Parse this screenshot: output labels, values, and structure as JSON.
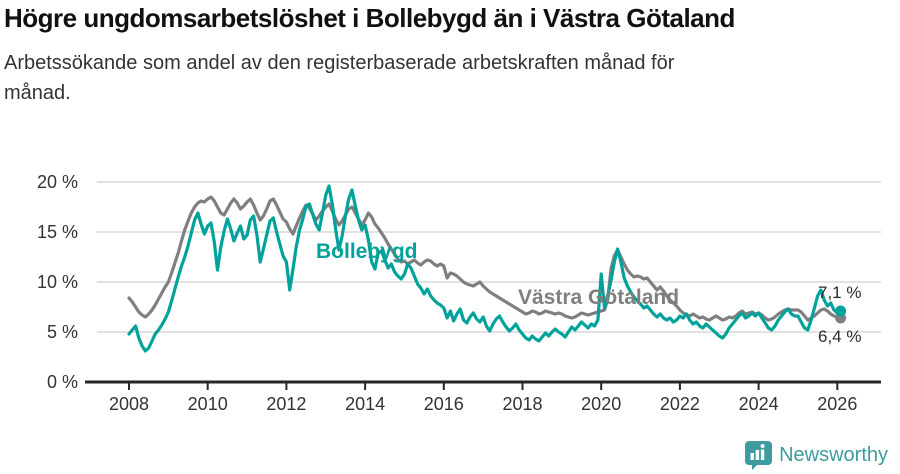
{
  "header": {
    "title": "Högre ungdomsarbetslöshet i Bollebygd än i Västra Götaland",
    "subtitle": "Arbetssökande som andel av den registerbaserade arbetskraften månad för månad."
  },
  "footer": {
    "brand": "Newsworthy",
    "logo_icon": "bar-chart-pin-icon",
    "brand_color": "#3E9C9E"
  },
  "chart_data": {
    "type": "line",
    "title": "Högre ungdomsarbetslöshet i Bollebygd än i Västra Götaland",
    "subtitle": "Arbetssökande som andel av den registerbaserade arbetskraften månad för månad.",
    "unit": "%",
    "frequency": "monthly",
    "x_start": "2008-01",
    "x_end": "2026-02",
    "ylim": [
      0,
      21
    ],
    "grid": true,
    "legend_position": "inline-labels",
    "colors": {
      "grid": "#D8D8D8",
      "axis": "#262626",
      "tick_text": "#333333",
      "value_text": "#2B2B2B"
    },
    "yticks": [
      {
        "value": 0,
        "label": "0 %"
      },
      {
        "value": 5,
        "label": "5 %"
      },
      {
        "value": 10,
        "label": "10 %"
      },
      {
        "value": 15,
        "label": "15 %"
      },
      {
        "value": 20,
        "label": "20 %"
      }
    ],
    "xticks": [
      "2008",
      "2010",
      "2012",
      "2014",
      "2016",
      "2018",
      "2020",
      "2022",
      "2024",
      "2026"
    ],
    "series": [
      {
        "name": "Västra Götaland",
        "color": "#7F7F7F",
        "end_label": "6,4 %",
        "end_label_position": "below",
        "end_value": 6.4,
        "values": [
          8.4,
          8.0,
          7.5,
          7.0,
          6.7,
          6.5,
          6.8,
          7.2,
          7.7,
          8.3,
          8.9,
          9.5,
          10.0,
          10.9,
          11.9,
          12.9,
          14.1,
          15.2,
          16.1,
          16.9,
          17.5,
          17.9,
          18.1,
          18.0,
          18.3,
          18.5,
          18.1,
          17.5,
          16.9,
          16.7,
          17.3,
          17.9,
          18.3,
          17.9,
          17.3,
          17.6,
          18.0,
          18.3,
          17.7,
          16.9,
          16.2,
          16.6,
          17.3,
          18.1,
          18.3,
          17.7,
          17.0,
          16.3,
          16.0,
          15.3,
          14.8,
          15.6,
          16.4,
          17.1,
          17.7,
          17.4,
          16.8,
          16.2,
          16.6,
          17.1,
          17.5,
          17.8,
          17.1,
          16.3,
          15.7,
          16.1,
          16.7,
          17.3,
          17.5,
          16.9,
          16.3,
          15.7,
          16.2,
          16.9,
          16.5,
          15.8,
          15.4,
          14.9,
          14.4,
          13.8,
          13.3,
          12.8,
          12.3,
          12.0,
          12.1,
          11.8,
          12.0,
          12.2,
          11.9,
          11.7,
          12.0,
          12.2,
          12.1,
          11.8,
          11.6,
          11.8,
          11.6,
          10.4,
          10.9,
          10.8,
          10.6,
          10.3,
          10.0,
          9.8,
          9.7,
          9.6,
          9.8,
          10.0,
          9.6,
          9.3,
          9.0,
          8.8,
          8.6,
          8.4,
          8.2,
          8.0,
          7.8,
          7.6,
          7.4,
          7.2,
          7.0,
          6.8,
          6.9,
          7.1,
          7.0,
          6.8,
          6.9,
          7.1,
          7.0,
          6.9,
          6.8,
          6.9,
          6.8,
          6.6,
          6.5,
          6.4,
          6.5,
          6.7,
          6.9,
          6.8,
          6.7,
          6.8,
          6.9,
          7.0,
          7.1,
          7.2,
          8.3,
          11.3,
          12.6,
          13.2,
          12.5,
          11.8,
          11.2,
          10.8,
          10.5,
          10.6,
          10.5,
          10.3,
          10.4,
          10.0,
          9.6,
          9.2,
          9.5,
          9.1,
          8.6,
          8.2,
          7.9,
          7.6,
          7.2,
          6.9,
          6.7,
          6.6,
          6.8,
          6.6,
          6.4,
          6.5,
          6.3,
          6.2,
          6.4,
          6.6,
          6.4,
          6.2,
          6.3,
          6.5,
          6.4,
          6.6,
          6.9,
          7.1,
          6.8,
          6.9,
          7.0,
          6.8,
          6.9,
          6.7,
          6.4,
          6.2,
          6.3,
          6.5,
          6.8,
          7.0,
          7.2,
          7.3,
          7.2,
          7.2,
          7.2,
          7.0,
          6.6,
          6.2,
          6.4,
          6.6,
          6.9,
          7.2,
          7.3,
          7.1,
          6.8,
          6.6,
          6.5,
          6.4
        ]
      },
      {
        "name": "Bollebygd",
        "color": "#00A29B",
        "end_label": "7,1 %",
        "end_label_position": "above",
        "end_value": 7.1,
        "values": [
          4.8,
          5.2,
          5.6,
          4.4,
          3.6,
          3.1,
          3.4,
          4.1,
          4.8,
          5.2,
          5.7,
          6.3,
          7.0,
          8.1,
          9.3,
          10.5,
          11.6,
          12.5,
          13.6,
          14.9,
          16.2,
          16.9,
          15.8,
          14.8,
          15.6,
          15.9,
          14.0,
          11.2,
          13.5,
          15.1,
          16.3,
          15.3,
          14.1,
          14.9,
          15.6,
          14.3,
          14.7,
          16.2,
          16.6,
          14.7,
          12.0,
          13.3,
          14.7,
          16.1,
          16.4,
          15.0,
          13.8,
          12.6,
          12.0,
          9.2,
          11.3,
          13.5,
          15.2,
          16.3,
          17.6,
          17.8,
          16.8,
          15.8,
          15.2,
          16.9,
          18.7,
          19.6,
          17.8,
          15.3,
          13.2,
          14.6,
          16.6,
          18.3,
          19.2,
          17.6,
          16.2,
          15.2,
          15.7,
          14.2,
          12.0,
          11.3,
          12.9,
          13.1,
          12.2,
          11.4,
          11.8,
          11.0,
          10.6,
          10.3,
          10.8,
          11.8,
          11.4,
          10.6,
          9.8,
          9.4,
          8.8,
          9.3,
          8.6,
          8.2,
          7.9,
          7.7,
          7.4,
          6.4,
          7.1,
          6.1,
          6.8,
          7.3,
          6.2,
          5.9,
          6.5,
          6.9,
          6.3,
          6.0,
          6.5,
          5.6,
          5.1,
          5.8,
          6.3,
          6.6,
          6.0,
          5.5,
          5.1,
          5.4,
          5.8,
          5.2,
          4.8,
          4.4,
          4.2,
          4.6,
          4.3,
          4.1,
          4.5,
          4.9,
          4.6,
          5.0,
          5.3,
          5.0,
          4.8,
          4.5,
          5.0,
          5.5,
          5.2,
          5.6,
          6.0,
          5.7,
          5.4,
          5.8,
          5.6,
          6.2,
          10.8,
          7.4,
          8.6,
          10.2,
          12.0,
          13.3,
          12.0,
          10.4,
          9.6,
          9.0,
          8.5,
          8.1,
          7.8,
          7.4,
          7.6,
          7.2,
          6.8,
          6.5,
          6.8,
          6.4,
          6.2,
          6.4,
          6.0,
          6.2,
          6.6,
          6.4,
          6.8,
          6.2,
          5.8,
          6.0,
          5.6,
          5.4,
          5.8,
          5.5,
          5.2,
          4.9,
          4.6,
          4.4,
          4.8,
          5.4,
          5.8,
          6.2,
          6.6,
          6.9,
          6.4,
          6.6,
          6.9,
          6.6,
          6.9,
          6.4,
          5.9,
          5.4,
          5.2,
          5.6,
          6.2,
          6.6,
          7.0,
          7.3,
          6.8,
          6.6,
          6.6,
          6.0,
          5.4,
          5.2,
          6.2,
          7.4,
          8.6,
          9.2,
          8.2,
          7.6,
          7.9,
          7.2,
          6.9,
          7.1
        ]
      }
    ]
  }
}
